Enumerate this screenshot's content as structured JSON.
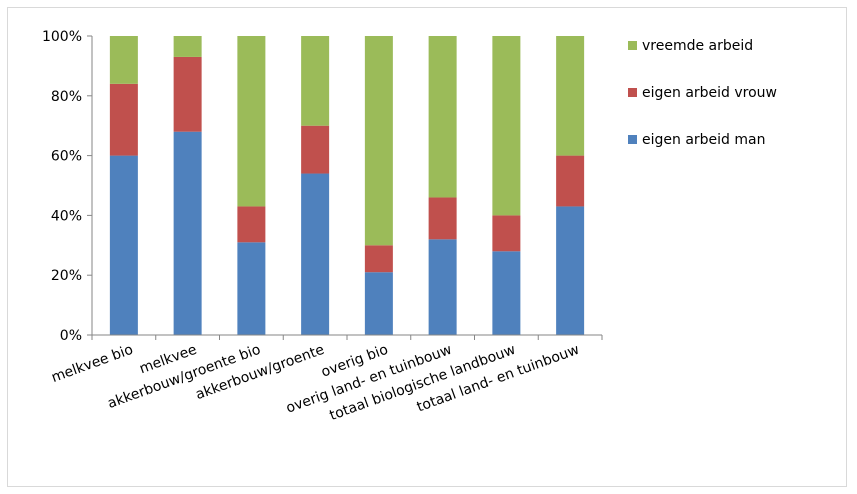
{
  "chart_data": {
    "type": "bar",
    "stacked": true,
    "percent": true,
    "title": "",
    "xlabel": "",
    "ylabel": "",
    "ylim": [
      0,
      100
    ],
    "yticks": [
      "0%",
      "20%",
      "40%",
      "60%",
      "80%",
      "100%"
    ],
    "categories": [
      "melkvee bio",
      "melkvee",
      "akkerbouw/groente bio",
      "akkerbouw/groente",
      "overig bio",
      "overig land- en tuinbouw",
      "totaal biologische landbouw",
      "totaal land- en tuinbouw"
    ],
    "series": [
      {
        "name": "eigen arbeid man",
        "color": "#4f81bd",
        "values": [
          60,
          68,
          31,
          54,
          21,
          32,
          28,
          43
        ]
      },
      {
        "name": "eigen arbeid vrouw",
        "color": "#c0504d",
        "values": [
          24,
          25,
          12,
          16,
          9,
          14,
          12,
          17
        ]
      },
      {
        "name": "vreemde arbeid",
        "color": "#9bbb59",
        "values": [
          16,
          7,
          57,
          30,
          70,
          54,
          60,
          40
        ]
      }
    ],
    "legend_position": "right",
    "legend_order": [
      "vreemde arbeid",
      "eigen arbeid vrouw",
      "eigen arbeid man"
    ],
    "grid": false
  }
}
